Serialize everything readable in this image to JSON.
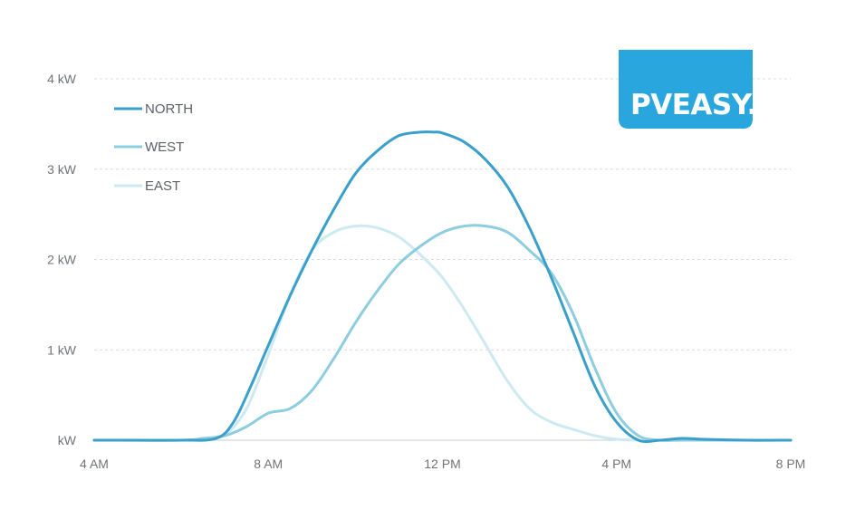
{
  "chart_data": {
    "type": "line",
    "x_unit": "hour",
    "xlim": [
      4,
      20
    ],
    "ylim": [
      0,
      4
    ],
    "x_ticks": [
      {
        "x": 4,
        "label": "4 AM"
      },
      {
        "x": 8,
        "label": "8 AM"
      },
      {
        "x": 12,
        "label": "12 PM"
      },
      {
        "x": 16,
        "label": "4 PM"
      },
      {
        "x": 20,
        "label": "8 PM"
      }
    ],
    "y_ticks": [
      {
        "y": 0,
        "label": "kW"
      },
      {
        "y": 1,
        "label": "1 kW"
      },
      {
        "y": 2,
        "label": "2 kW"
      },
      {
        "y": 3,
        "label": "3 kW"
      },
      {
        "y": 4,
        "label": "4 kW"
      }
    ],
    "grid": true,
    "legend_position": "top-left",
    "series": [
      {
        "name": "NORTH",
        "color": "#3a9fcb",
        "width": 3,
        "x": [
          4,
          5,
          6,
          6.8,
          7.2,
          7.6,
          8,
          8.5,
          9,
          9.5,
          10,
          10.5,
          11,
          11.5,
          11.8,
          12,
          12.5,
          13,
          13.5,
          14,
          14.5,
          15,
          15.5,
          16,
          16.5,
          17,
          17.5,
          18,
          19,
          20
        ],
        "y": [
          0,
          0,
          0,
          0.02,
          0.2,
          0.6,
          1.05,
          1.6,
          2.1,
          2.55,
          2.95,
          3.2,
          3.37,
          3.41,
          3.41,
          3.4,
          3.3,
          3.1,
          2.8,
          2.35,
          1.8,
          1.2,
          0.6,
          0.2,
          0,
          0,
          0.02,
          0.01,
          0,
          0
        ]
      },
      {
        "name": "WEST",
        "color": "#8ccde0",
        "width": 3,
        "x": [
          4,
          6,
          6.5,
          7,
          7.5,
          8,
          8.5,
          9,
          9.5,
          10,
          10.5,
          11,
          11.5,
          12,
          12.5,
          13,
          13.5,
          14,
          14.5,
          15,
          15.5,
          16,
          16.5,
          17,
          17.5,
          18,
          19,
          20
        ],
        "y": [
          0,
          0,
          0.02,
          0.05,
          0.15,
          0.3,
          0.35,
          0.55,
          0.9,
          1.3,
          1.65,
          1.95,
          2.15,
          2.3,
          2.37,
          2.37,
          2.3,
          2.1,
          1.85,
          1.4,
          0.8,
          0.3,
          0.05,
          0,
          0,
          0,
          0,
          0
        ]
      },
      {
        "name": "EAST",
        "color": "#cde9f2",
        "width": 3,
        "x": [
          4,
          6,
          6.5,
          7,
          7.5,
          8,
          8.5,
          9,
          9.5,
          10,
          10.5,
          11,
          11.5,
          12,
          12.5,
          13,
          13.5,
          14,
          14.5,
          15,
          15.5,
          16,
          16.5,
          17,
          20
        ],
        "y": [
          0,
          0,
          0.02,
          0.06,
          0.35,
          0.95,
          1.6,
          2.1,
          2.3,
          2.37,
          2.35,
          2.25,
          2.05,
          1.8,
          1.45,
          1.05,
          0.65,
          0.35,
          0.2,
          0.12,
          0.05,
          0.01,
          0,
          0,
          0
        ]
      }
    ]
  },
  "logo": {
    "text": "PVEASY.",
    "background": "#29a6dd",
    "color": "#ffffff"
  }
}
